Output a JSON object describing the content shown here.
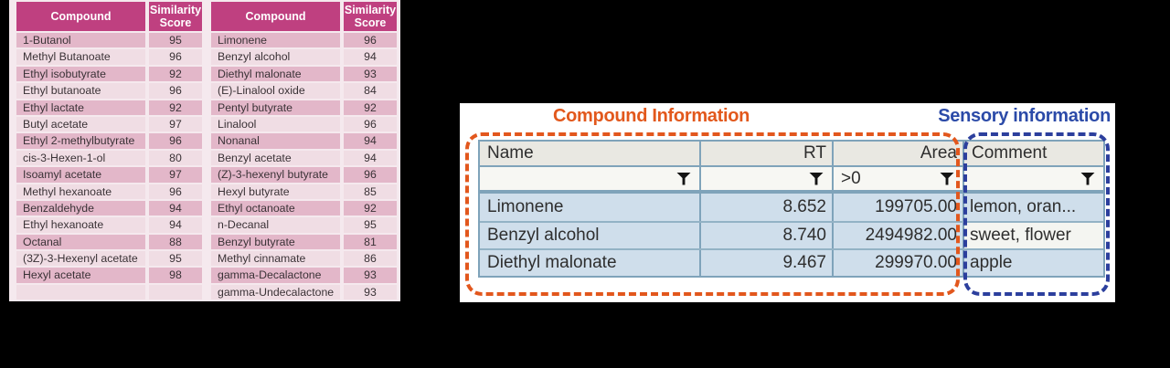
{
  "similarity_tables": {
    "compound_header": "Compound",
    "score_header": "Similarity Score",
    "table1": [
      {
        "name": "1-Butanol",
        "score": "95"
      },
      {
        "name": "Methyl Butanoate",
        "score": "96"
      },
      {
        "name": "Ethyl isobutyrate",
        "score": "92"
      },
      {
        "name": "Ethyl butanoate",
        "score": "96"
      },
      {
        "name": "Ethyl lactate",
        "score": "92"
      },
      {
        "name": "Butyl acetate",
        "score": "97"
      },
      {
        "name": "Ethyl 2-methylbutyrate",
        "score": "96"
      },
      {
        "name": "cis-3-Hexen-1-ol",
        "score": "80"
      },
      {
        "name": "Isoamyl acetate",
        "score": "97"
      },
      {
        "name": "Methyl hexanoate",
        "score": "96"
      },
      {
        "name": "Benzaldehyde",
        "score": "94"
      },
      {
        "name": "Ethyl hexanoate",
        "score": "94"
      },
      {
        "name": "Octanal",
        "score": "88"
      },
      {
        "name": "(3Z)-3-Hexenyl acetate",
        "score": "95"
      },
      {
        "name": "Hexyl acetate",
        "score": "98"
      },
      {
        "name": "",
        "score": ""
      }
    ],
    "table2": [
      {
        "name": "Limonene",
        "score": "96"
      },
      {
        "name": "Benzyl alcohol",
        "score": "94"
      },
      {
        "name": "Diethyl malonate",
        "score": "93"
      },
      {
        "name": "(E)-Linalool oxide",
        "score": "84"
      },
      {
        "name": "Pentyl butyrate",
        "score": "92"
      },
      {
        "name": "Linalool",
        "score": "96"
      },
      {
        "name": "Nonanal",
        "score": "94"
      },
      {
        "name": "Benzyl acetate",
        "score": "94"
      },
      {
        "name": "(Z)-3-hexenyl butyrate",
        "score": "96"
      },
      {
        "name": "Hexyl butyrate",
        "score": "85"
      },
      {
        "name": "Ethyl octanoate",
        "score": "92"
      },
      {
        "name": "n-Decanal",
        "score": "95"
      },
      {
        "name": "Benzyl butyrate",
        "score": "81"
      },
      {
        "name": "Methyl cinnamate",
        "score": "86"
      },
      {
        "name": "gamma-Decalactone",
        "score": "93"
      },
      {
        "name": "gamma-Undecalactone",
        "score": "93"
      }
    ]
  },
  "analysis_panel": {
    "compound_info_title": "Compound Information",
    "sensory_info_title": "Sensory information",
    "columns": {
      "name": "Name",
      "rt": "RT",
      "area": "Area",
      "comment": "Comment"
    },
    "area_filter_value": ">0",
    "rows": [
      {
        "name": "Limonene",
        "rt": "8.652",
        "area": "199705.00",
        "comment": "lemon, oran..."
      },
      {
        "name": "Benzyl alcohol",
        "rt": "8.740",
        "area": "2494982.00",
        "comment": "sweet, flower"
      },
      {
        "name": "Diethyl malonate",
        "rt": "9.467",
        "area": "299970.00",
        "comment": "apple"
      }
    ],
    "icons": {
      "filter": "funnel-icon"
    }
  },
  "colors": {
    "table_header_bg": "#bf4080",
    "row_dark_pink": "#e3b7c9",
    "row_light_pink": "#f0dde4",
    "annotation_orange": "#e2571d",
    "annotation_blue": "#2c3f9d",
    "sheet_row_blue": "#cfdeeb",
    "sheet_border": "#7fa3ba",
    "background": "#000000"
  }
}
